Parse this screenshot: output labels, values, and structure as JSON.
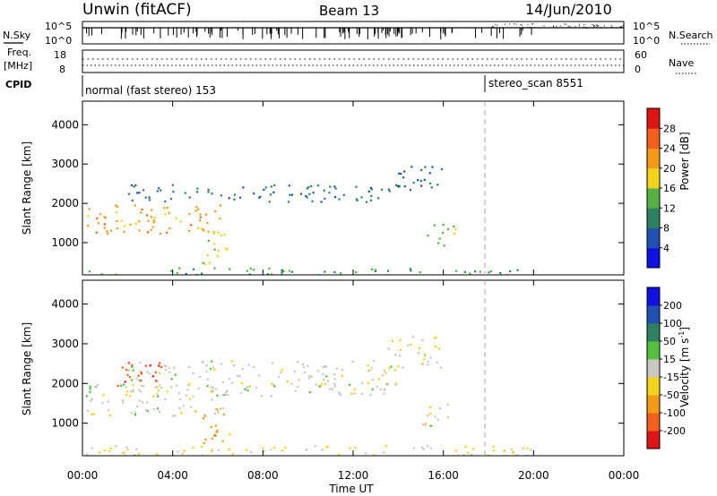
{
  "header": {
    "station": "Unwin (fitACF)",
    "beam": "Beam 13",
    "date": "14/Jun/2010"
  },
  "top_panels": {
    "nsky_label": "N.Sky",
    "nsky_top": "10^5",
    "nsky_bottom": "10^0",
    "nsearch_top": "10^5",
    "nsearch_bottom": "10^0",
    "nsearch_label": "N.Search",
    "freq_label": "Freq.",
    "freq_unit": "[MHz]",
    "freq_top": "18",
    "freq_bottom": "8",
    "nave_top": "60",
    "nave_bottom": "0",
    "nave_label": "Nave",
    "cpid_label": "CPID",
    "cpid_first": "normal (fast stereo) 153",
    "cpid_second": "stereo_scan 8551"
  },
  "x_axis": {
    "label": "Time UT",
    "ticks": [
      "00:00",
      "04:00",
      "08:00",
      "12:00",
      "16:00",
      "20:00",
      "00:00"
    ],
    "range_hours": [
      0,
      24
    ],
    "marker_hour": 18
  },
  "chart_data": [
    {
      "type": "heatmap",
      "title": "Power",
      "ylabel": "Slant Range [km]",
      "yticks": [
        "1000",
        "2000",
        "3000",
        "4000"
      ],
      "ylim": [
        180,
        4600
      ],
      "colorbar": {
        "label": "Power [dB]",
        "ticks": [
          "4",
          "8",
          "12",
          "16",
          "20",
          "24",
          "28"
        ],
        "range": [
          0,
          32
        ],
        "colors": [
          "#1010e0",
          "#2050b0",
          "#2f7f62",
          "#55b045",
          "#f0d31a",
          "#f59a16",
          "#f0601a",
          "#dd1515"
        ]
      },
      "regions": [
        {
          "name": "main-band",
          "t": [
            0.1,
            6.3
          ],
          "r": [
            1250,
            2000
          ],
          "value": 22
        },
        {
          "name": "upper-band",
          "t": [
            2.0,
            14.0
          ],
          "r": [
            2050,
            2500
          ],
          "value": 9
        },
        {
          "name": "low-echo",
          "t": [
            5.3,
            6.5
          ],
          "r": [
            450,
            1300
          ],
          "value": 18
        },
        {
          "name": "blob-14h",
          "t": [
            13.5,
            16.0
          ],
          "r": [
            2350,
            3000
          ],
          "value": 8
        },
        {
          "name": "blob-16h",
          "t": [
            15.2,
            16.5
          ],
          "r": [
            900,
            1500
          ],
          "value": 14
        },
        {
          "name": "ground-line",
          "t": [
            0.1,
            20.0
          ],
          "r": [
            180,
            380
          ],
          "value": 12
        }
      ]
    },
    {
      "type": "heatmap",
      "title": "Velocity",
      "ylabel": "Slant Range [km]",
      "yticks": [
        "1000",
        "2000",
        "3000",
        "4000"
      ],
      "ylim": [
        180,
        4600
      ],
      "colorbar": {
        "label": "Velocity [m s^-1]",
        "ticks": [
          "200",
          "100",
          "50",
          "15",
          "-15",
          "-50",
          "-100",
          "-200"
        ],
        "range": [
          -250,
          250
        ],
        "colors": [
          "#dd1515",
          "#f0601a",
          "#f59a16",
          "#f0d31a",
          "#c8c8c0",
          "#55c040",
          "#2f7f62",
          "#2050b0",
          "#1010e0"
        ]
      },
      "regions": [
        {
          "name": "main-band",
          "t": [
            0.1,
            6.3
          ],
          "r": [
            1200,
            2000
          ],
          "value": 0
        },
        {
          "name": "upper-band",
          "t": [
            2.0,
            14.0
          ],
          "r": [
            1700,
            2600
          ],
          "value": 0
        },
        {
          "name": "red-echo",
          "t": [
            1.5,
            3.5
          ],
          "r": [
            1900,
            2600
          ],
          "value": -180
        },
        {
          "name": "low-echo",
          "t": [
            5.3,
            6.5
          ],
          "r": [
            500,
            1400
          ],
          "value": -120
        },
        {
          "name": "blob-14h",
          "t": [
            13.5,
            16.0
          ],
          "r": [
            2400,
            3200
          ],
          "value": -30
        },
        {
          "name": "blob-16h",
          "t": [
            15.0,
            16.5
          ],
          "r": [
            900,
            1500
          ],
          "value": 0
        },
        {
          "name": "ground-line",
          "t": [
            0.1,
            20.0
          ],
          "r": [
            180,
            450
          ],
          "value": -30
        }
      ]
    }
  ]
}
